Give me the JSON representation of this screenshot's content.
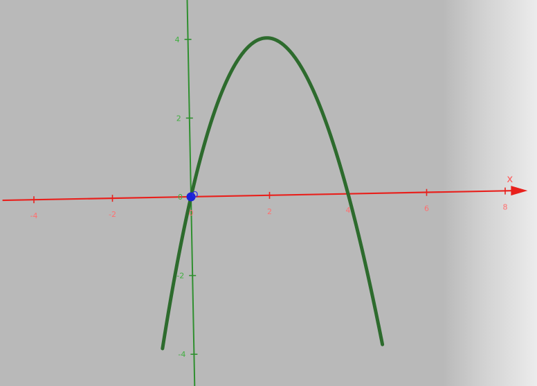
{
  "colors": {
    "x_axis": "#e8201c",
    "y_axis": "#2f8f2f",
    "curve": "#2d6b2d",
    "point": "#1a22d8",
    "point_label": "#2a2ae0"
  },
  "chart_data": {
    "type": "line",
    "title": "",
    "xlabel": "x",
    "ylabel": "",
    "xlim": [
      -4.8,
      8.5
    ],
    "ylim": [
      -5.2,
      5.0
    ],
    "x_ticks": [
      -4,
      -2,
      0,
      2,
      4,
      6,
      8
    ],
    "y_ticks": [
      -4,
      -2,
      0,
      2,
      4
    ],
    "x_tick_labels": [
      "-4",
      "-2",
      "0",
      "2",
      "4",
      "6",
      "8"
    ],
    "y_tick_labels": [
      "-4",
      "-2",
      "0",
      "2",
      "4"
    ],
    "grid": false,
    "legend": "none",
    "series": [
      {
        "x": [
          -0.8,
          -0.6,
          -0.4,
          -0.2,
          0,
          0.5,
          1,
          1.5,
          2,
          2.5,
          3,
          3.5,
          4,
          4.2,
          4.4,
          4.6,
          4.8
        ],
        "y": [
          -3.84,
          -2.76,
          -1.76,
          -0.84,
          0,
          1.75,
          3,
          3.75,
          4,
          3.75,
          3,
          1.75,
          0,
          -0.84,
          -1.76,
          -2.76,
          -3.84
        ]
      }
    ],
    "points": [
      {
        "label": "O",
        "x": 0,
        "y": 0
      }
    ]
  }
}
